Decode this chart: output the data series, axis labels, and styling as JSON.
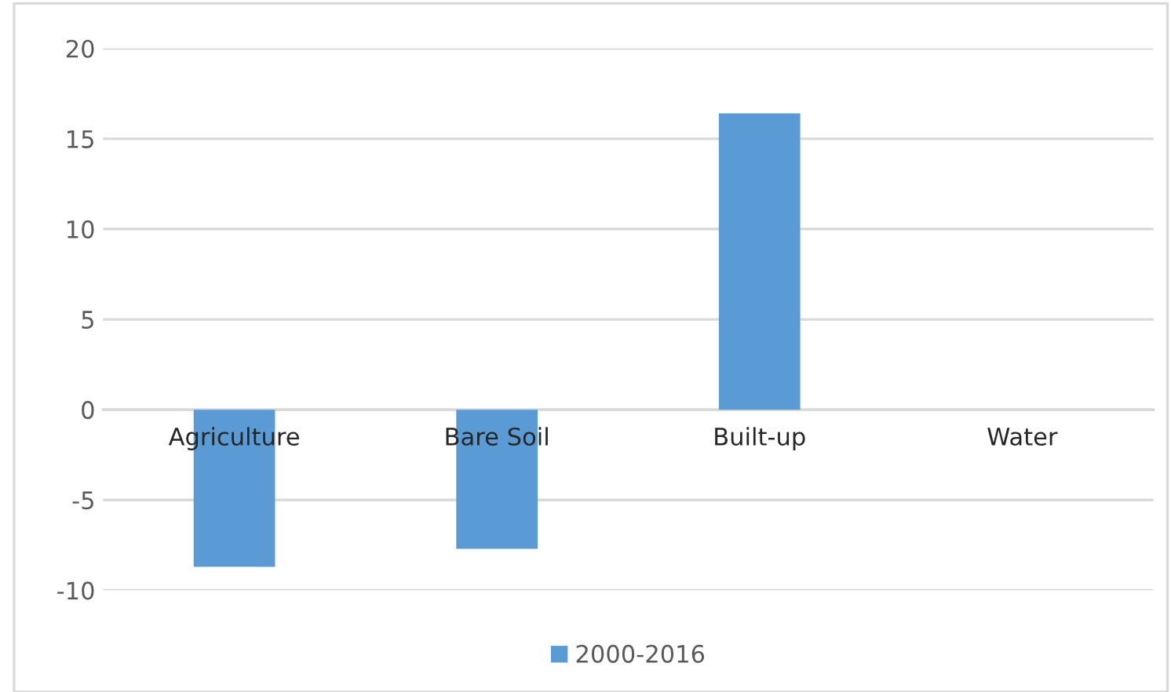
{
  "chart_data": {
    "type": "bar",
    "categories": [
      "Agriculture",
      "Bare Soil",
      "Built-up",
      "Water"
    ],
    "series": [
      {
        "name": "2000-2016",
        "color": "#5b9bd5",
        "values": [
          -8.7,
          -7.7,
          16.4,
          0
        ]
      }
    ],
    "ylim": [
      -10,
      20
    ],
    "yticks": [
      -10,
      -5,
      0,
      5,
      10,
      15,
      20
    ],
    "grid": "y",
    "legend": "bottom"
  }
}
